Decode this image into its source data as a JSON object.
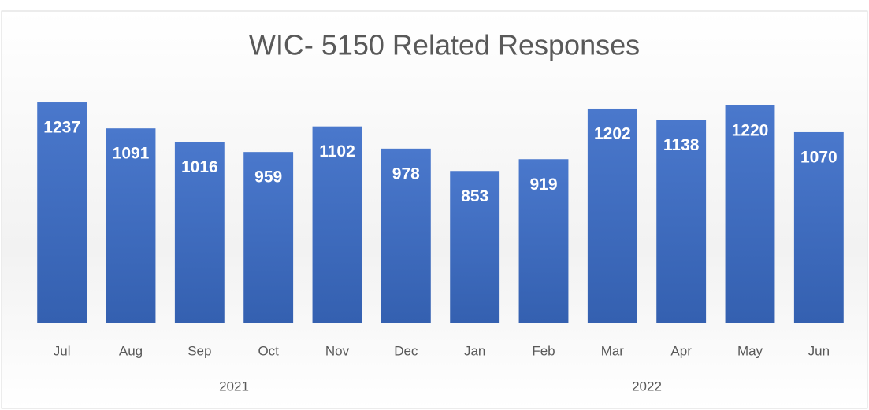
{
  "chart_data": {
    "type": "bar",
    "title": "WIC- 5150 Related Responses",
    "color": "#4472c4",
    "ylim": [
      0,
      1400
    ],
    "groups": [
      {
        "label": "2021",
        "categories": [
          "Jul",
          "Aug",
          "Sep",
          "Oct",
          "Nov",
          "Dec"
        ],
        "values": [
          1237,
          1091,
          1016,
          959,
          1102,
          978
        ]
      },
      {
        "label": "2022",
        "categories": [
          "Jan",
          "Feb",
          "Mar",
          "Apr",
          "May",
          "Jun"
        ],
        "values": [
          853,
          919,
          1202,
          1138,
          1220,
          1070
        ]
      }
    ]
  }
}
